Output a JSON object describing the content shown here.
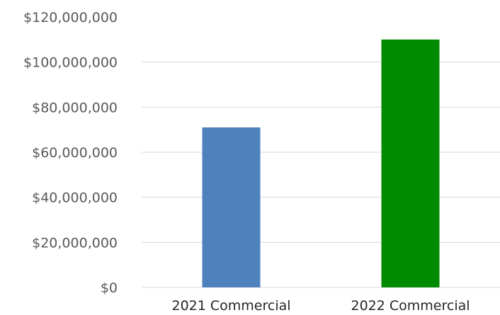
{
  "chart_data": {
    "type": "bar",
    "categories": [
      "2021 Commercial",
      "2022 Commercial"
    ],
    "values": [
      71000000,
      110000000
    ],
    "colors": [
      "#4f81bd",
      "#008a00"
    ],
    "ylim": [
      0,
      120000000
    ],
    "yticks": [
      0,
      20000000,
      40000000,
      60000000,
      80000000,
      100000000,
      120000000
    ],
    "ytick_labels": [
      "$0",
      "$20,000,000",
      "$40,000,000",
      "$60,000,000",
      "$80,000,000",
      "$100,000,000",
      "$120,000,000"
    ],
    "grid": true,
    "legend": "none"
  }
}
